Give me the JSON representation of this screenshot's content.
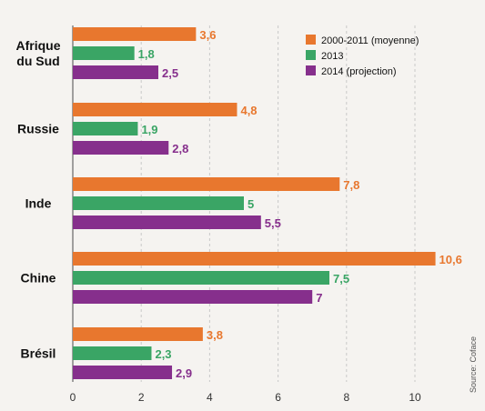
{
  "chart_data": {
    "type": "bar",
    "orientation": "horizontal",
    "categories": [
      [
        "Afrique",
        "du Sud"
      ],
      [
        "Russie"
      ],
      [
        "Inde"
      ],
      [
        "Chine"
      ],
      [
        "Brésil"
      ]
    ],
    "series": [
      {
        "name": "2000-2011 (moyenne)",
        "color": "#e8772e",
        "values": [
          3.6,
          4.8,
          7.8,
          10.6,
          3.8
        ],
        "labels": [
          "3,6",
          "4,8",
          "7,8",
          "10,6",
          "3,8"
        ]
      },
      {
        "name": "2013",
        "color": "#3aa565",
        "values": [
          1.8,
          1.9,
          5,
          7.5,
          2.3
        ],
        "labels": [
          "1,8",
          "1,9",
          "5",
          "7,5",
          "2,3"
        ]
      },
      {
        "name": "2014 (projection)",
        "color": "#862f8c",
        "values": [
          2.5,
          2.8,
          5.5,
          7,
          2.9
        ],
        "labels": [
          "2,5",
          "2,8",
          "5,5",
          "7",
          "2,9"
        ]
      }
    ],
    "xlim": [
      0,
      11
    ],
    "xticks": [
      0,
      2,
      4,
      6,
      8,
      10
    ],
    "grid": true,
    "legend_position": "top-right",
    "source": "Source: Coface"
  }
}
